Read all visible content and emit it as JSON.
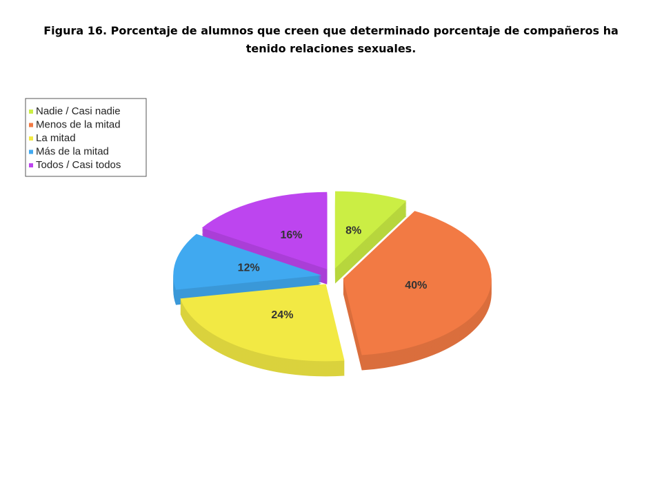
{
  "chart_data": {
    "type": "pie",
    "title": "Figura 16.  Porcentaje de alumnos que creen que determinado porcentaje de compañeros ha tenido relaciones sexuales.",
    "categories": [
      "Nadie / Casi nadie",
      "Menos de la mitad",
      "La mitad",
      "Más de la mitad",
      "Todos / Casi todos"
    ],
    "values": [
      8,
      40,
      24,
      12,
      16
    ],
    "value_labels": [
      "8%",
      "40%",
      "24%",
      "12%",
      "16%"
    ],
    "colors": [
      "#cbee44",
      "#f27a44",
      "#f2e944",
      "#40a9f0",
      "#bd45ef"
    ],
    "legend": "top-left"
  }
}
